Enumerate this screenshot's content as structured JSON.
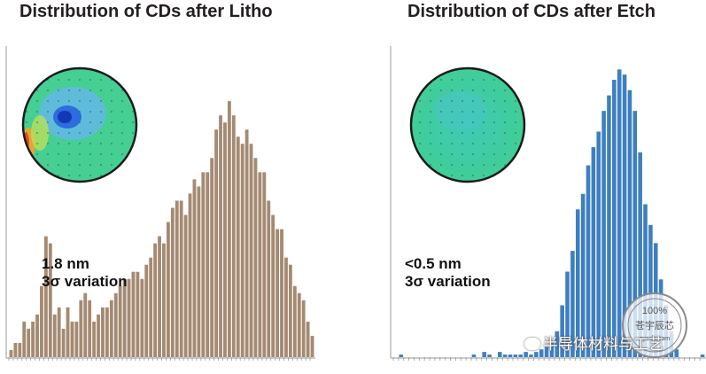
{
  "chart_data": [
    {
      "type": "bar",
      "title": "Distribution of CDs after Litho",
      "annotation": [
        "1.8 nm",
        "3σ variation"
      ],
      "color": "#a48a72",
      "values": [
        1,
        2,
        2,
        5,
        4,
        5,
        6,
        10,
        17,
        16,
        6,
        7,
        4,
        7,
        5,
        5,
        8,
        9,
        8,
        5,
        6,
        7,
        7,
        8,
        9,
        10,
        11,
        11,
        12,
        12,
        11,
        13,
        14,
        16,
        17,
        16,
        19,
        21,
        22,
        22,
        20,
        23,
        25,
        24,
        26,
        26,
        28,
        32,
        34,
        33,
        36,
        34,
        31,
        30,
        32,
        30,
        28,
        26,
        26,
        22,
        20,
        18,
        18,
        14,
        13,
        10,
        9,
        8,
        5,
        3
      ],
      "ylim": [
        0,
        40
      ]
    },
    {
      "type": "bar",
      "title": "Distribution of CDs after Etch",
      "annotation": [
        "<0.5 nm",
        "3σ variation"
      ],
      "color": "#3d7fc1",
      "values": [
        0,
        1,
        0,
        0,
        0,
        0,
        0,
        0,
        0,
        0,
        0,
        0,
        0,
        0,
        0,
        1,
        0,
        2,
        1,
        0,
        2,
        1,
        1,
        1,
        1,
        2,
        1,
        2,
        3,
        4,
        6,
        10,
        20,
        33,
        41,
        57,
        63,
        74,
        81,
        87,
        95,
        101,
        107,
        111,
        109,
        103,
        95,
        79,
        59,
        51,
        44,
        30,
        20,
        10,
        3,
        0,
        0,
        0,
        0,
        1
      ],
      "ylim": [
        0,
        120
      ]
    }
  ],
  "watermark": {
    "text": "半导体材料与工艺",
    "stamp_top": "100%",
    "stamp_mid": "苍宇辰芯",
    "stamp_url": "cycxic.com"
  }
}
